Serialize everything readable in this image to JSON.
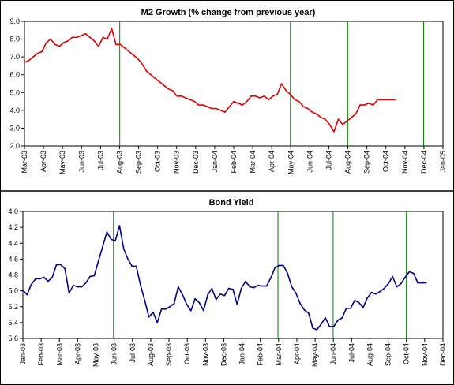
{
  "chart_data": [
    {
      "type": "line",
      "title": "M2 Growth (% change from previous year)",
      "xlabel": "",
      "ylabel": "",
      "ylim": [
        2.0,
        9.0
      ],
      "yticks": [
        "2.0",
        "3.0",
        "4.0",
        "5.0",
        "6.0",
        "7.0",
        "8.0",
        "9.0"
      ],
      "xticks": [
        "Mar-03",
        "Apr-03",
        "May-03",
        "Jun-03",
        "Jul-03",
        "Aug-03",
        "Sep-03",
        "Oct-03",
        "Nov-03",
        "Dec-03",
        "Jan-04",
        "Feb-04",
        "Mar-04",
        "Apr-04",
        "May-04",
        "Jun-04",
        "Jul-04",
        "Aug-04",
        "Sep-04",
        "Oct-04",
        "Nov-04",
        "Dec-04",
        "Jan-05"
      ],
      "xlim": [
        "2003-03-01",
        "2005-01-01"
      ],
      "grid": false,
      "line_color": "#e00000",
      "vlines": [
        "2003-08-01",
        "2004-05-01",
        "2004-08-01",
        "2004-12-01"
      ],
      "series": [
        {
          "x": [
            "2003-03-01",
            "2003-03-08",
            "2003-03-15",
            "2003-03-22",
            "2003-03-29",
            "2003-04-05",
            "2003-04-12",
            "2003-04-19",
            "2003-04-26",
            "2003-05-03",
            "2003-05-10",
            "2003-05-17",
            "2003-05-24",
            "2003-05-31",
            "2003-06-07",
            "2003-06-14",
            "2003-06-21",
            "2003-06-28",
            "2003-07-05",
            "2003-07-12",
            "2003-07-19",
            "2003-07-26",
            "2003-08-02",
            "2003-08-09",
            "2003-08-16",
            "2003-08-23",
            "2003-08-30",
            "2003-09-06",
            "2003-09-13",
            "2003-09-20",
            "2003-09-27",
            "2003-10-04",
            "2003-10-11",
            "2003-10-18",
            "2003-10-25",
            "2003-11-01",
            "2003-11-08",
            "2003-11-15",
            "2003-11-22",
            "2003-11-29",
            "2003-12-06",
            "2003-12-13",
            "2003-12-20",
            "2003-12-27",
            "2004-01-03",
            "2004-01-10",
            "2004-01-17",
            "2004-01-24",
            "2004-01-31",
            "2004-02-07",
            "2004-02-14",
            "2004-02-21",
            "2004-02-28",
            "2004-03-06",
            "2004-03-13",
            "2004-03-20",
            "2004-03-27",
            "2004-04-03",
            "2004-04-10",
            "2004-04-17",
            "2004-04-24",
            "2004-05-01",
            "2004-05-08",
            "2004-05-15",
            "2004-05-22",
            "2004-05-29",
            "2004-06-05",
            "2004-06-12",
            "2004-06-19",
            "2004-06-26",
            "2004-07-03",
            "2004-07-10",
            "2004-07-17",
            "2004-07-24",
            "2004-07-31",
            "2004-08-07",
            "2004-08-14",
            "2004-08-21",
            "2004-08-28",
            "2004-09-04",
            "2004-09-11",
            "2004-09-18",
            "2004-09-25",
            "2004-10-02",
            "2004-10-09",
            "2004-10-16"
          ],
          "y": [
            6.7,
            6.8,
            7.0,
            7.2,
            7.3,
            7.8,
            8.0,
            7.7,
            7.6,
            7.8,
            7.9,
            8.1,
            8.1,
            8.2,
            8.3,
            8.1,
            7.9,
            7.6,
            8.1,
            8.0,
            8.6,
            7.7,
            7.7,
            7.5,
            7.3,
            7.1,
            6.9,
            6.6,
            6.2,
            6.0,
            5.8,
            5.6,
            5.4,
            5.2,
            5.1,
            4.8,
            4.8,
            4.7,
            4.6,
            4.5,
            4.3,
            4.3,
            4.2,
            4.1,
            4.1,
            4.0,
            3.9,
            4.2,
            4.5,
            4.4,
            4.3,
            4.5,
            4.8,
            4.8,
            4.7,
            4.8,
            4.6,
            4.8,
            4.9,
            5.5,
            5.1,
            4.9,
            4.6,
            4.5,
            4.2,
            4.1,
            3.9,
            3.8,
            3.6,
            3.5,
            3.2,
            2.8,
            3.5,
            3.2,
            3.4,
            3.6,
            3.8,
            4.3,
            4.3,
            4.4,
            4.3,
            4.6,
            4.6,
            4.6,
            4.6,
            4.6
          ]
        }
      ]
    },
    {
      "type": "line",
      "title": "Bond Yield",
      "xlabel": "",
      "ylabel": "",
      "ylim": [
        5.6,
        4.0
      ],
      "inverted_y": true,
      "yticks": [
        "4.0",
        "4.2",
        "4.4",
        "4.6",
        "4.8",
        "5.0",
        "5.2",
        "5.4",
        "5.6"
      ],
      "xticks": [
        "Jan-03",
        "Feb-03",
        "Mar-03",
        "Apr-03",
        "May-03",
        "Jun-03",
        "Jul-03",
        "Aug-03",
        "Sep-03",
        "Oct-03",
        "Nov-03",
        "Dec-03",
        "Jan-04",
        "Feb-04",
        "Mar-04",
        "Apr-04",
        "May-04",
        "Jun-04",
        "Jul-04",
        "Aug-04",
        "Sep-04",
        "Oct-04",
        "Nov-04",
        "Dec-04"
      ],
      "xlim": [
        "2003-01-01",
        "2004-12-01"
      ],
      "grid": false,
      "line_color": "#000080",
      "vlines": [
        "2003-06-01",
        "2004-03-01",
        "2004-06-01",
        "2004-10-01"
      ],
      "series": [
        {
          "x": [
            "2003-01-01",
            "2003-01-08",
            "2003-01-15",
            "2003-01-22",
            "2003-01-29",
            "2003-02-05",
            "2003-02-12",
            "2003-02-19",
            "2003-02-26",
            "2003-03-05",
            "2003-03-12",
            "2003-03-19",
            "2003-03-26",
            "2003-04-02",
            "2003-04-09",
            "2003-04-16",
            "2003-04-23",
            "2003-04-30",
            "2003-05-07",
            "2003-05-14",
            "2003-05-21",
            "2003-05-28",
            "2003-06-04",
            "2003-06-11",
            "2003-06-18",
            "2003-06-25",
            "2003-07-02",
            "2003-07-09",
            "2003-07-16",
            "2003-07-23",
            "2003-07-30",
            "2003-08-06",
            "2003-08-13",
            "2003-08-20",
            "2003-08-27",
            "2003-09-03",
            "2003-09-10",
            "2003-09-17",
            "2003-09-24",
            "2003-10-01",
            "2003-10-08",
            "2003-10-15",
            "2003-10-22",
            "2003-10-29",
            "2003-11-05",
            "2003-11-12",
            "2003-11-19",
            "2003-11-26",
            "2003-12-03",
            "2003-12-10",
            "2003-12-17",
            "2003-12-24",
            "2003-12-31",
            "2004-01-07",
            "2004-01-14",
            "2004-01-21",
            "2004-01-28",
            "2004-02-04",
            "2004-02-11",
            "2004-02-18",
            "2004-02-25",
            "2004-03-03",
            "2004-03-10",
            "2004-03-17",
            "2004-03-24",
            "2004-03-31",
            "2004-04-07",
            "2004-04-14",
            "2004-04-21",
            "2004-04-28",
            "2004-05-05",
            "2004-05-12",
            "2004-05-19",
            "2004-05-26",
            "2004-06-02",
            "2004-06-09",
            "2004-06-16",
            "2004-06-23",
            "2004-06-30",
            "2004-07-07",
            "2004-07-14",
            "2004-07-21",
            "2004-07-28",
            "2004-08-04",
            "2004-08-11",
            "2004-08-18",
            "2004-08-25",
            "2004-09-01",
            "2004-09-08",
            "2004-09-15",
            "2004-09-22",
            "2004-09-29",
            "2004-10-06",
            "2004-10-13",
            "2004-10-20",
            "2004-10-27",
            "2004-11-03"
          ],
          "y": [
            4.99,
            5.05,
            4.92,
            4.85,
            4.85,
            4.83,
            4.88,
            4.83,
            4.67,
            4.67,
            4.72,
            5.03,
            4.93,
            4.95,
            4.95,
            4.9,
            4.82,
            4.81,
            4.62,
            4.44,
            4.26,
            4.35,
            4.37,
            4.18,
            4.47,
            4.6,
            4.69,
            4.69,
            4.93,
            5.12,
            5.33,
            5.27,
            5.4,
            5.23,
            5.23,
            5.2,
            5.16,
            4.95,
            5.05,
            5.17,
            5.25,
            5.1,
            5.15,
            5.25,
            5.05,
            4.97,
            5.11,
            5.04,
            5.06,
            4.97,
            4.98,
            5.17,
            4.97,
            4.88,
            4.95,
            4.96,
            4.93,
            4.94,
            4.94,
            4.84,
            4.71,
            4.68,
            4.68,
            4.78,
            4.95,
            5.03,
            5.16,
            5.24,
            5.28,
            5.47,
            5.49,
            5.42,
            5.34,
            5.45,
            5.45,
            5.37,
            5.34,
            5.22,
            5.22,
            5.12,
            5.15,
            5.21,
            5.09,
            5.02,
            5.04,
            5.01,
            4.97,
            4.91,
            4.82,
            4.95,
            4.91,
            4.83,
            4.76,
            4.78,
            4.9,
            4.9,
            4.9
          ]
        }
      ]
    }
  ]
}
